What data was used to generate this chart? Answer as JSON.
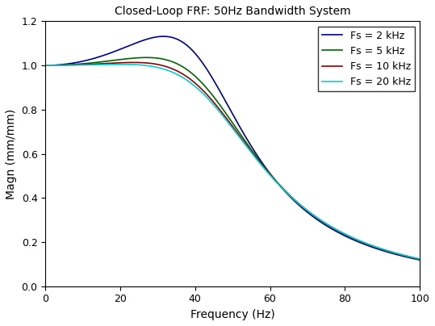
{
  "title": "Closed-Loop FRF: 50Hz Bandwidth System",
  "xlabel": "Frequency (Hz)",
  "ylabel": "Magn (mm/mm)",
  "xlim": [
    0,
    100
  ],
  "ylim": [
    0,
    1.2
  ],
  "yticks": [
    0,
    0.2,
    0.4,
    0.6,
    0.8,
    1.0,
    1.2
  ],
  "xticks": [
    0,
    20,
    40,
    60,
    80,
    100
  ],
  "series": [
    {
      "label": "Fs = 2 kHz",
      "color": "#00008B",
      "fs_hz": 2000,
      "lw": 1.2
    },
    {
      "label": "Fs = 5 kHz",
      "color": "#006400",
      "fs_hz": 5000,
      "lw": 1.2
    },
    {
      "label": "Fs = 10 kHz",
      "color": "#8B0000",
      "fs_hz": 10000,
      "lw": 1.2
    },
    {
      "label": "Fs = 20 kHz",
      "color": "#00CED1",
      "fs_hz": 20000,
      "lw": 1.2
    }
  ],
  "bandwidth_hz": 50,
  "background_color": "#ffffff",
  "legend_loc": "upper right",
  "title_fontsize": 10,
  "label_fontsize": 10,
  "tick_fontsize": 9
}
